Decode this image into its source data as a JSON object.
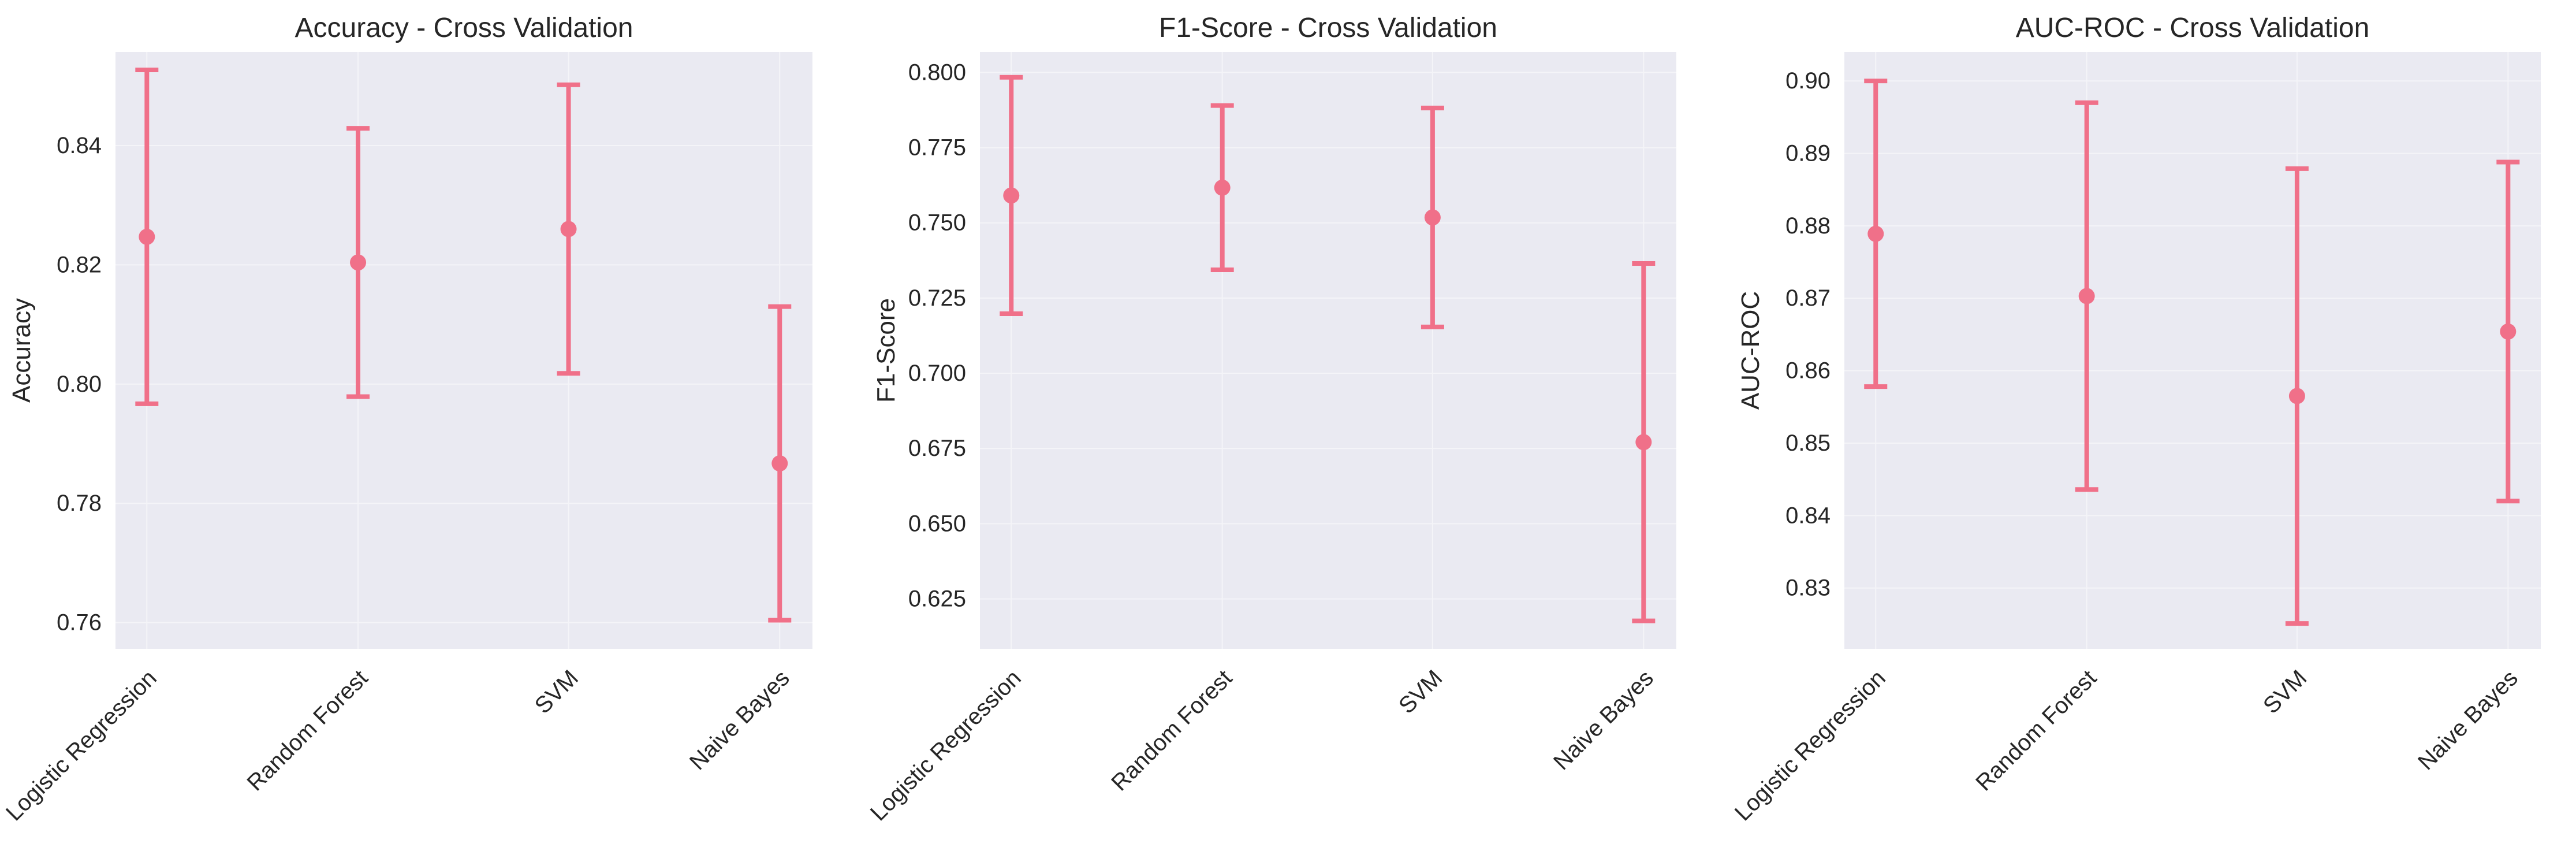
{
  "style": {
    "accent_color": "#f07089",
    "axes_background": "#eaeaf2",
    "grid_color": "#f4f4f8",
    "text_color": "#262626"
  },
  "chart_data": [
    {
      "type": "errorbar",
      "title": "Accuracy - Cross Validation",
      "xlabel": "",
      "ylabel": "Accuracy",
      "categories": [
        "Logistic Regression",
        "Random Forest",
        "SVM",
        "Naive Bayes"
      ],
      "means": [
        0.8247,
        0.8204,
        0.826,
        0.7867
      ],
      "errors": [
        0.028,
        0.0225,
        0.0242,
        0.0263
      ],
      "ylim": [
        0.7556,
        0.8557
      ],
      "yticks": [
        0.76,
        0.78,
        0.8,
        0.82,
        0.84
      ],
      "ytick_labels": [
        "0.76",
        "0.78",
        "0.80",
        "0.82",
        "0.84"
      ],
      "grid": true
    },
    {
      "type": "errorbar",
      "title": "F1-Score - Cross Validation",
      "xlabel": "",
      "ylabel": "F1-Score",
      "categories": [
        "Logistic Regression",
        "Random Forest",
        "SVM",
        "Naive Bayes"
      ],
      "means": [
        0.7591,
        0.7617,
        0.7518,
        0.6771
      ],
      "errors": [
        0.0393,
        0.0273,
        0.0364,
        0.0594
      ],
      "ylim": [
        0.6084,
        0.8068
      ],
      "yticks": [
        0.625,
        0.65,
        0.675,
        0.7,
        0.725,
        0.75,
        0.775,
        0.8
      ],
      "ytick_labels": [
        "0.625",
        "0.650",
        "0.675",
        "0.700",
        "0.725",
        "0.750",
        "0.775",
        "0.800"
      ],
      "grid": true
    },
    {
      "type": "errorbar",
      "title": "AUC-ROC - Cross Validation",
      "xlabel": "",
      "ylabel": "AUC-ROC",
      "categories": [
        "Logistic Regression",
        "Random Forest",
        "SVM",
        "Naive Bayes"
      ],
      "means": [
        0.8789,
        0.8703,
        0.8565,
        0.8654
      ],
      "errors": [
        0.0211,
        0.0267,
        0.0314,
        0.0234
      ],
      "ylim": [
        0.8216,
        0.904
      ],
      "yticks": [
        0.83,
        0.84,
        0.85,
        0.86,
        0.87,
        0.88,
        0.89,
        0.9
      ],
      "ytick_labels": [
        "0.83",
        "0.84",
        "0.85",
        "0.86",
        "0.87",
        "0.88",
        "0.89",
        "0.90"
      ],
      "grid": true
    }
  ]
}
